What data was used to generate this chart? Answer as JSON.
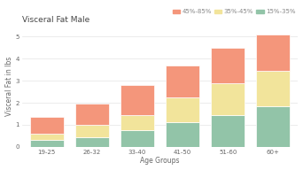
{
  "title": "Visceral Fat Male",
  "xlabel": "Age Groups",
  "ylabel": "Visceral Fat in lbs",
  "categories": [
    "19-25",
    "26-32",
    "33-40",
    "41-50",
    "51-60",
    "60+"
  ],
  "segment1_label": "45%-85%",
  "segment2_label": "35%-45%",
  "segment3_label": "15%-35%",
  "segment1_color": "#F4967B",
  "segment2_color": "#F2E49B",
  "segment3_color": "#92C4A8",
  "segment1_values": [
    0.75,
    0.95,
    1.35,
    1.45,
    1.6,
    1.65
  ],
  "segment2_values": [
    0.3,
    0.55,
    0.7,
    1.15,
    1.45,
    1.6
  ],
  "segment3_values": [
    0.3,
    0.45,
    0.75,
    1.1,
    1.45,
    1.85
  ],
  "ylim": [
    0,
    5.5
  ],
  "yticks": [
    0,
    1,
    2,
    3,
    4,
    5
  ],
  "background_color": "#FFFFFF",
  "grid_color": "#E5E5E5",
  "title_fontsize": 6.5,
  "label_fontsize": 5.5,
  "tick_fontsize": 5,
  "legend_fontsize": 5,
  "bar_width": 0.75,
  "bar_edge_color": "white",
  "bar_linewidth": 0.5
}
